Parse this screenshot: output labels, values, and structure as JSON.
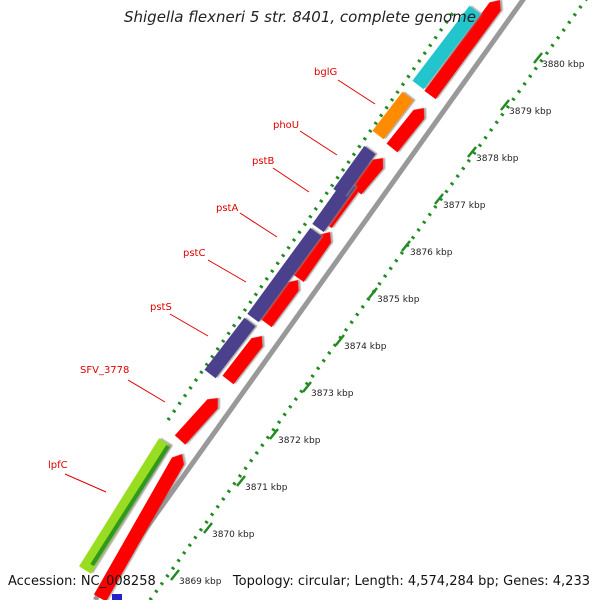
{
  "header": {
    "title": "Shigella flexneri 5 str. 8401, complete genome"
  },
  "footer": {
    "accession": "Accession: NC_008258",
    "summary": "Topology: circular; Length: 4,574,284 bp; Genes: 4,233"
  },
  "ruler": {
    "ticks": [
      "3869 kbp",
      "3870 kbp",
      "3871 kbp",
      "3872 kbp",
      "3873 kbp",
      "3874 kbp",
      "3875 kbp",
      "3876 kbp",
      "3877 kbp",
      "3878 kbp",
      "3879 kbp",
      "3880 kbp"
    ]
  },
  "genes": [
    {
      "label": "lpfC",
      "color": "#99dd22"
    },
    {
      "label": "SFV_3778",
      "color": "#ff0000"
    },
    {
      "label": "pstS",
      "color": "#4b3f8c"
    },
    {
      "label": "pstC",
      "color": "#4b3f8c"
    },
    {
      "label": "pstA",
      "color": "#4b3f8c"
    },
    {
      "label": "pstB",
      "color": "#4b3f8c"
    },
    {
      "label": "phoU",
      "color": "#4b3f8c"
    },
    {
      "label": "bglG",
      "color": "#ff8c00"
    }
  ],
  "colors": {
    "cds": "#ff0000",
    "tick": "#228b22",
    "backbone": "#999999",
    "label": "#e00000"
  }
}
